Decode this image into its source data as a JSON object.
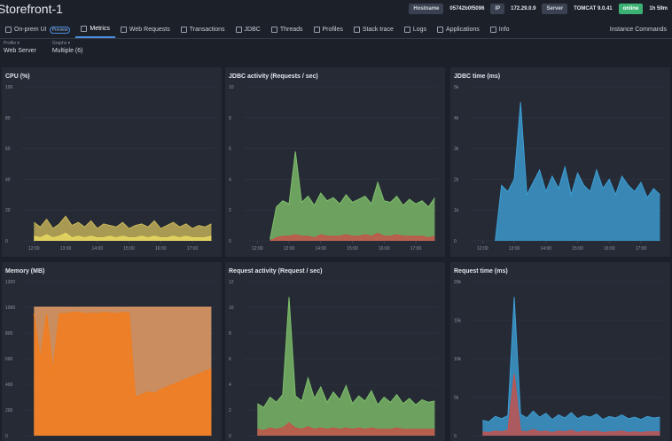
{
  "header": {
    "title": "Storefront-1",
    "badges": [
      {
        "key": "Hostname",
        "value": "05742b0f5096"
      },
      {
        "key": "IP",
        "value": "172.29.0.9"
      },
      {
        "key": "Server",
        "value": "TOMCAT 9.0.41"
      }
    ],
    "status": "online",
    "uptime": "1h 59m"
  },
  "tabs": [
    "On-prem UI",
    "Metrics",
    "Web Requests",
    "Transactions",
    "JDBC",
    "Threads",
    "Profiles",
    "Stack trace",
    "Logs",
    "Applications",
    "Info"
  ],
  "preview_badge": "Preview",
  "instance_commands": "Instance Commands",
  "filters": [
    {
      "label": "Profile ▾",
      "value": "Web Server"
    },
    {
      "label": "Graphs ▾",
      "value": "Multiple (6)"
    }
  ],
  "chart_data": [
    {
      "type": "area",
      "title": "CPU (%)",
      "x": [
        11.8,
        12.0,
        12.2,
        12.4,
        12.6,
        12.8,
        13.0,
        13.2,
        13.4,
        13.6,
        13.8,
        14.0,
        14.2,
        14.4,
        14.6,
        14.8,
        15.0,
        15.2,
        15.4,
        15.6,
        15.8,
        16.0,
        16.2,
        16.4,
        16.6,
        16.8,
        17.0,
        17.2,
        17.4,
        17.6
      ],
      "xlim": [
        11.6,
        17.7
      ],
      "xticks": [
        {
          "value": 12,
          "label": "12:00"
        },
        {
          "value": 13,
          "label": "13:00"
        },
        {
          "value": 14,
          "label": "14:00"
        },
        {
          "value": 15,
          "label": "15:00"
        },
        {
          "value": 16,
          "label": "16:00"
        },
        {
          "value": 17,
          "label": "17:00"
        }
      ],
      "ylim": [
        0,
        100
      ],
      "yticks": [
        0,
        20,
        40,
        60,
        80,
        100
      ],
      "grid": true,
      "series": [
        {
          "color": "#c9b75a",
          "values": [
            null,
            12,
            9,
            14,
            8,
            11,
            16,
            10,
            12,
            9,
            13,
            8,
            11,
            10,
            9,
            12,
            8,
            10,
            11,
            9,
            13,
            8,
            10,
            12,
            9,
            11,
            8,
            10,
            9,
            11
          ]
        },
        {
          "color": "#ecdc62",
          "values": [
            null,
            3,
            2,
            4,
            2,
            3,
            5,
            2,
            3,
            2,
            3,
            2,
            2,
            3,
            2,
            3,
            2,
            2,
            3,
            2,
            3,
            2,
            2,
            3,
            2,
            3,
            2,
            2,
            2,
            3
          ]
        }
      ]
    },
    {
      "type": "area",
      "title": "JDBC activity (Requests / sec)",
      "x": [
        11.8,
        12.0,
        12.2,
        12.4,
        12.6,
        12.8,
        13.0,
        13.2,
        13.4,
        13.6,
        13.8,
        14.0,
        14.2,
        14.4,
        14.6,
        14.8,
        15.0,
        15.2,
        15.4,
        15.6,
        15.8,
        16.0,
        16.2,
        16.4,
        16.6,
        16.8,
        17.0,
        17.2,
        17.4,
        17.6
      ],
      "xlim": [
        11.6,
        17.7
      ],
      "xticks": [
        {
          "value": 12,
          "label": "12:00"
        },
        {
          "value": 13,
          "label": "13:00"
        },
        {
          "value": 14,
          "label": "14:00"
        },
        {
          "value": 15,
          "label": "15:00"
        },
        {
          "value": 16,
          "label": "16:00"
        },
        {
          "value": 17,
          "label": "17:00"
        }
      ],
      "ylim": [
        0,
        10
      ],
      "yticks": [
        0,
        2,
        4,
        6,
        8,
        10
      ],
      "grid": true,
      "series": [
        {
          "color": "#7fbf6a",
          "values": [
            null,
            null,
            null,
            0.1,
            2.2,
            2.6,
            2.4,
            5.8,
            2.5,
            2.9,
            2.3,
            3.1,
            2.6,
            2.8,
            2.4,
            3.0,
            2.5,
            2.7,
            2.9,
            2.4,
            3.8,
            2.6,
            2.5,
            2.9,
            2.3,
            2.7,
            2.4,
            2.6,
            2.2,
            2.8
          ]
        },
        {
          "color": "#c8504a",
          "values": [
            null,
            null,
            null,
            0,
            0.2,
            0.3,
            0.3,
            0.4,
            0.3,
            0.3,
            0.2,
            0.4,
            0.3,
            0.3,
            0.3,
            0.4,
            0.3,
            0.3,
            0.4,
            0.3,
            0.5,
            0.3,
            0.3,
            0.4,
            0.3,
            0.3,
            0.3,
            0.3,
            0.2,
            0.3
          ]
        }
      ]
    },
    {
      "type": "area",
      "title": "JDBC time (ms)",
      "x": [
        11.8,
        12.0,
        12.2,
        12.4,
        12.6,
        12.8,
        13.0,
        13.2,
        13.4,
        13.6,
        13.8,
        14.0,
        14.2,
        14.4,
        14.6,
        14.8,
        15.0,
        15.2,
        15.4,
        15.6,
        15.8,
        16.0,
        16.2,
        16.4,
        16.6,
        16.8,
        17.0,
        17.2,
        17.4,
        17.6
      ],
      "xlim": [
        11.6,
        17.7
      ],
      "xticks": [
        {
          "value": 12,
          "label": "12:00"
        },
        {
          "value": 13,
          "label": "13:00"
        },
        {
          "value": 14,
          "label": "14:00"
        },
        {
          "value": 15,
          "label": "15:00"
        },
        {
          "value": 16,
          "label": "16:00"
        },
        {
          "value": 17,
          "label": "17:00"
        }
      ],
      "ylim": [
        0,
        5000
      ],
      "yticks": [
        0,
        {
          "value": 1000,
          "label": "1k"
        },
        {
          "value": 2000,
          "label": "2k"
        },
        {
          "value": 3000,
          "label": "3k"
        },
        {
          "value": 4000,
          "label": "4k"
        },
        {
          "value": 5000,
          "label": "5k"
        }
      ],
      "grid": true,
      "series": [
        {
          "color": "#3d9fd6",
          "values": [
            null,
            null,
            null,
            0,
            1800,
            1600,
            2000,
            4500,
            1500,
            1900,
            2300,
            1600,
            2100,
            1700,
            2400,
            1500,
            2200,
            1800,
            1600,
            2300,
            1700,
            2000,
            1500,
            2100,
            1800,
            1600,
            1900,
            1400,
            1700,
            1500
          ]
        }
      ]
    },
    {
      "type": "area",
      "title": "Memory (MB)",
      "x": [
        11.8,
        12.0,
        12.2,
        12.4,
        12.6,
        12.8,
        13.0,
        13.2,
        13.4,
        13.6,
        13.8,
        14.0,
        14.2,
        14.4,
        14.6,
        14.8,
        15.0,
        15.2,
        15.4,
        15.6,
        15.8,
        16.0,
        16.2,
        16.4,
        16.6,
        16.8,
        17.0,
        17.2,
        17.4,
        17.6
      ],
      "xlim": [
        11.6,
        17.7
      ],
      "ylim": [
        0,
        1200
      ],
      "yticks": [
        0,
        200,
        400,
        600,
        800,
        1000,
        1200
      ],
      "grid": true,
      "series": [
        {
          "color": "#f4a66a",
          "values": [
            null,
            1000,
            1000,
            1000,
            1000,
            1000,
            1000,
            1000,
            1000,
            1000,
            1000,
            1000,
            1000,
            1000,
            1000,
            1000,
            1000,
            1000,
            1000,
            1000,
            1000,
            1000,
            1000,
            1000,
            1000,
            1000,
            1000,
            1000,
            1000,
            1000
          ]
        },
        {
          "color": "#f47c1a",
          "values": [
            null,
            950,
            600,
            950,
            500,
            950,
            950,
            960,
            960,
            950,
            955,
            950,
            960,
            955,
            950,
            960,
            955,
            300,
            320,
            340,
            330,
            360,
            380,
            400,
            420,
            440,
            460,
            480,
            500,
            520
          ]
        }
      ]
    },
    {
      "type": "area",
      "title": "Request activity (Request / sec)",
      "x": [
        11.8,
        12.0,
        12.2,
        12.4,
        12.6,
        12.8,
        13.0,
        13.2,
        13.4,
        13.6,
        13.8,
        14.0,
        14.2,
        14.4,
        14.6,
        14.8,
        15.0,
        15.2,
        15.4,
        15.6,
        15.8,
        16.0,
        16.2,
        16.4,
        16.6,
        16.8,
        17.0,
        17.2,
        17.4,
        17.6
      ],
      "xlim": [
        11.6,
        17.7
      ],
      "ylim": [
        0,
        12
      ],
      "yticks": [
        0,
        2,
        4,
        6,
        8,
        10,
        12
      ],
      "grid": true,
      "series": [
        {
          "color": "#7fbf6a",
          "values": [
            null,
            2.5,
            2.2,
            3.0,
            2.6,
            3.2,
            10.8,
            3.1,
            2.7,
            4.5,
            2.9,
            3.8,
            2.6,
            3.4,
            2.8,
            3.9,
            2.5,
            3.1,
            2.7,
            3.5,
            2.4,
            3.0,
            2.6,
            3.2,
            2.5,
            2.9,
            2.4,
            2.8,
            2.6,
            2.7
          ]
        },
        {
          "color": "#c8504a",
          "values": [
            null,
            0.5,
            0.4,
            0.6,
            0.5,
            0.6,
            1.0,
            0.6,
            0.5,
            0.7,
            0.5,
            0.6,
            0.5,
            0.6,
            0.5,
            0.6,
            0.5,
            0.6,
            0.5,
            0.6,
            0.5,
            0.5,
            0.5,
            0.6,
            0.5,
            0.5,
            0.5,
            0.5,
            0.5,
            0.5
          ]
        }
      ]
    },
    {
      "type": "area",
      "title": "Request time (ms)",
      "x": [
        11.8,
        12.0,
        12.2,
        12.4,
        12.6,
        12.8,
        13.0,
        13.2,
        13.4,
        13.6,
        13.8,
        14.0,
        14.2,
        14.4,
        14.6,
        14.8,
        15.0,
        15.2,
        15.4,
        15.6,
        15.8,
        16.0,
        16.2,
        16.4,
        16.6,
        16.8,
        17.0,
        17.2,
        17.4,
        17.6
      ],
      "xlim": [
        11.6,
        17.7
      ],
      "ylim": [
        0,
        20000
      ],
      "yticks": [
        0,
        {
          "value": 5000,
          "label": "5k"
        },
        {
          "value": 10000,
          "label": "10k"
        },
        {
          "value": 15000,
          "label": "15k"
        },
        {
          "value": 20000,
          "label": "20k"
        }
      ],
      "grid": true,
      "series": [
        {
          "color": "#3d9fd6",
          "values": [
            null,
            2000,
            1800,
            2500,
            2200,
            2600,
            18000,
            2800,
            2300,
            3200,
            2400,
            2900,
            2100,
            2700,
            2300,
            3000,
            2200,
            2600,
            2400,
            2800,
            2100,
            2500,
            2300,
            2700,
            2200,
            2400,
            2100,
            2500,
            2300,
            2400
          ]
        },
        {
          "color": "#c8504a",
          "values": [
            null,
            500,
            400,
            600,
            500,
            700,
            8000,
            600,
            500,
            800,
            500,
            600,
            400,
            600,
            500,
            700,
            400,
            600,
            500,
            600,
            400,
            500,
            500,
            600,
            400,
            500,
            400,
            500,
            500,
            500
          ]
        }
      ]
    }
  ]
}
